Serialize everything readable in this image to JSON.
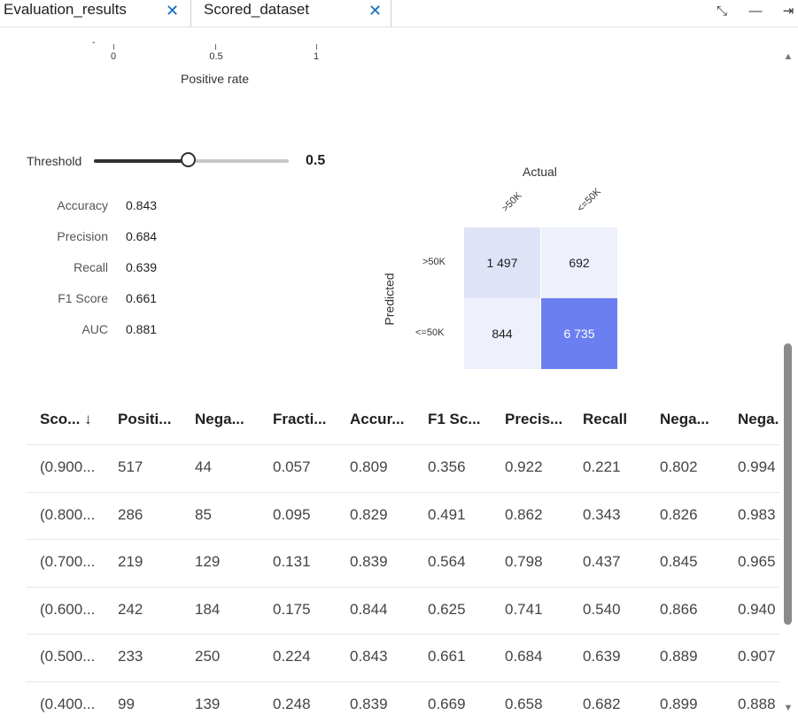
{
  "tabs": [
    {
      "label": "Evaluation_results",
      "close": "✕"
    },
    {
      "label": "Scored_dataset",
      "close": "✕"
    }
  ],
  "window_controls": {
    "collapse": "⤡",
    "minimize": "—",
    "expand": "⇥"
  },
  "top_axis": {
    "ticks": [
      "0",
      "0.5",
      "1"
    ],
    "title": "Positive rate"
  },
  "threshold": {
    "label": "Threshold",
    "value": "0.5",
    "fill_fraction": 0.5
  },
  "metrics": [
    {
      "label": "Accuracy",
      "value": "0.843"
    },
    {
      "label": "Precision",
      "value": "0.684"
    },
    {
      "label": "Recall",
      "value": "0.639"
    },
    {
      "label": "F1 Score",
      "value": "0.661"
    },
    {
      "label": "AUC",
      "value": "0.881"
    }
  ],
  "confusion_matrix": {
    "actual_label": "Actual",
    "predicted_label": "Predicted",
    "columns": [
      ">50K",
      "<=50K"
    ],
    "rows": [
      ">50K",
      "<=50K"
    ],
    "cells": [
      [
        "1 497",
        "692"
      ],
      [
        "844",
        "6 735"
      ]
    ],
    "colors": [
      [
        "#dfe3f7",
        "#eef0fb"
      ],
      [
        "#eef0fb",
        "#6b7ff0"
      ]
    ],
    "cell_text_colors": [
      [
        "#1f1f1f",
        "#1f1f1f"
      ],
      [
        "#1f1f1f",
        "#ffffff"
      ]
    ]
  },
  "table": {
    "headers": [
      "Sco... ↓",
      "Positi...",
      "Nega...",
      "Fracti...",
      "Accur...",
      "F1 Sc...",
      "Precis...",
      "Recall",
      "Nega...",
      "Nega."
    ],
    "rows": [
      [
        "(0.900...",
        "517",
        "44",
        "0.057",
        "0.809",
        "0.356",
        "0.922",
        "0.221",
        "0.802",
        "0.994"
      ],
      [
        "(0.800...",
        "286",
        "85",
        "0.095",
        "0.829",
        "0.491",
        "0.862",
        "0.343",
        "0.826",
        "0.983"
      ],
      [
        "(0.700...",
        "219",
        "129",
        "0.131",
        "0.839",
        "0.564",
        "0.798",
        "0.437",
        "0.845",
        "0.965"
      ],
      [
        "(0.600...",
        "242",
        "184",
        "0.175",
        "0.844",
        "0.625",
        "0.741",
        "0.540",
        "0.866",
        "0.940"
      ],
      [
        "(0.500...",
        "233",
        "250",
        "0.224",
        "0.843",
        "0.661",
        "0.684",
        "0.639",
        "0.889",
        "0.907"
      ],
      [
        "(0.400...",
        "99",
        "139",
        "0.248",
        "0.839",
        "0.669",
        "0.658",
        "0.682",
        "0.899",
        "0.888"
      ]
    ]
  }
}
